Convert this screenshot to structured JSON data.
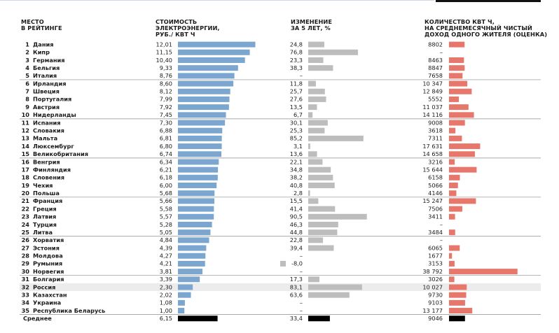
{
  "chart_data": {
    "type": "table",
    "headers": {
      "rank": "МЕСТО\nВ РЕЙТИНГЕ",
      "price": "СТОИМОСТЬ\nЭЛЕКТРОЭНЕРГИИ,\nРУБ./ КВТ Ч",
      "change": "ИЗМЕНЕНИЕ\nЗА 5 ЛЕТ, %",
      "kwh": "КОЛИЧЕСТВО КВТ Ч,\nНА СРЕДНЕМЕСЯЧНЫЙ ЧИСТЫЙ\nДОХОД ОДНОГО ЖИТЕЛЯ (ОЦЕНКА)"
    },
    "rows": [
      {
        "rank": "1",
        "country": "Дания",
        "price": "12,01",
        "change": "24,8",
        "kwh": "8802"
      },
      {
        "rank": "2",
        "country": "Кипр",
        "price": "11,15",
        "change": "76,8",
        "kwh": "–"
      },
      {
        "rank": "3",
        "country": "Германия",
        "price": "10,40",
        "change": "23,3",
        "kwh": "8463"
      },
      {
        "rank": "4",
        "country": "Бельгия",
        "price": "9,33",
        "change": "38,3",
        "kwh": "8847"
      },
      {
        "rank": "5",
        "country": "Италия",
        "price": "8,76",
        "change": "–",
        "kwh": "7658"
      },
      {
        "rank": "6",
        "country": "Ирландия",
        "price": "8,60",
        "change": "11,8",
        "kwh": "10 347"
      },
      {
        "rank": "7",
        "country": "Швеция",
        "price": "8,12",
        "change": "25,7",
        "kwh": "12 849"
      },
      {
        "rank": "8",
        "country": "Португалия",
        "price": "7,99",
        "change": "27,6",
        "kwh": "5552"
      },
      {
        "rank": "9",
        "country": "Австрия",
        "price": "7,92",
        "change": "13,5",
        "kwh": "11 037"
      },
      {
        "rank": "10",
        "country": "Нидерланды",
        "price": "7,45",
        "change": "6,7",
        "kwh": "14 116"
      },
      {
        "rank": "11",
        "country": "Испания",
        "price": "7,30",
        "change": "30,1",
        "kwh": "9008"
      },
      {
        "rank": "12",
        "country": "Словакия",
        "price": "6,88",
        "change": "25,3",
        "kwh": "3618"
      },
      {
        "rank": "13",
        "country": "Мальта",
        "price": "6,81",
        "change": "85,2",
        "kwh": "7311"
      },
      {
        "rank": "14",
        "country": "Люксембург",
        "price": "6,80",
        "change": "3,1",
        "kwh": "17 631"
      },
      {
        "rank": "15",
        "country": "Великобритания",
        "price": "6,74",
        "change": "13,6",
        "kwh": "14 658"
      },
      {
        "rank": "16",
        "country": "Венгрия",
        "price": "6,34",
        "change": "22,1",
        "kwh": "3216"
      },
      {
        "rank": "17",
        "country": "Финляндия",
        "price": "6,21",
        "change": "34,8",
        "kwh": "15 644"
      },
      {
        "rank": "18",
        "country": "Словения",
        "price": "6,18",
        "change": "38,2",
        "kwh": "6158"
      },
      {
        "rank": "19",
        "country": "Чехия",
        "price": "6,00",
        "change": "40,8",
        "kwh": "5066"
      },
      {
        "rank": "20",
        "country": "Польша",
        "price": "5,68",
        "change": "2,8",
        "kwh": "4146"
      },
      {
        "rank": "21",
        "country": "Франция",
        "price": "5,66",
        "change": "15,5",
        "kwh": "15 247"
      },
      {
        "rank": "22",
        "country": "Греция",
        "price": "5,58",
        "change": "41,4",
        "kwh": "7506"
      },
      {
        "rank": "23",
        "country": "Латвия",
        "price": "5,57",
        "change": "90,5",
        "kwh": "3411"
      },
      {
        "rank": "24",
        "country": "Турция",
        "price": "5,28",
        "change": "46,3",
        "kwh": "–"
      },
      {
        "rank": "25",
        "country": "Литва",
        "price": "5,05",
        "change": "44,8",
        "kwh": "3484"
      },
      {
        "rank": "26",
        "country": "Хорватия",
        "price": "4,84",
        "change": "22,8",
        "kwh": "–"
      },
      {
        "rank": "27",
        "country": "Эстония",
        "price": "4,39",
        "change": "39,4",
        "kwh": "6065"
      },
      {
        "rank": "28",
        "country": "Молдова",
        "price": "4,27",
        "change": "–",
        "kwh": "1677"
      },
      {
        "rank": "29",
        "country": "Румыния",
        "price": "4,21",
        "change": "-8,0",
        "kwh": "3153"
      },
      {
        "rank": "30",
        "country": "Норвегия",
        "price": "3,81",
        "change": "–",
        "kwh": "38 792"
      },
      {
        "rank": "31",
        "country": "Болгария",
        "price": "3,39",
        "change": "17,3",
        "kwh": "3026"
      },
      {
        "rank": "32",
        "country": "Россия",
        "price": "2,30",
        "change": "83,1",
        "kwh": "10 027"
      },
      {
        "rank": "33",
        "country": "Казахстан",
        "price": "2,02",
        "change": "63,6",
        "kwh": "9730"
      },
      {
        "rank": "34",
        "country": "Украина",
        "price": "1,08",
        "change": "–",
        "kwh": "9103"
      },
      {
        "rank": "35",
        "country": "Республика Беларусь",
        "price": "1,00",
        "change": "–",
        "kwh": "13 177"
      }
    ],
    "average": {
      "label": "Среднее",
      "price": "6,15",
      "change": "33,4",
      "kwh": "9046"
    },
    "highlight_row": "Россия",
    "colors": {
      "price_bar": "#7aa6cf",
      "change_bar": "#bdbdbd",
      "kwh_bar": "#e8776b",
      "average_bar": "#000000",
      "highlight_bg": "#ececec"
    }
  }
}
